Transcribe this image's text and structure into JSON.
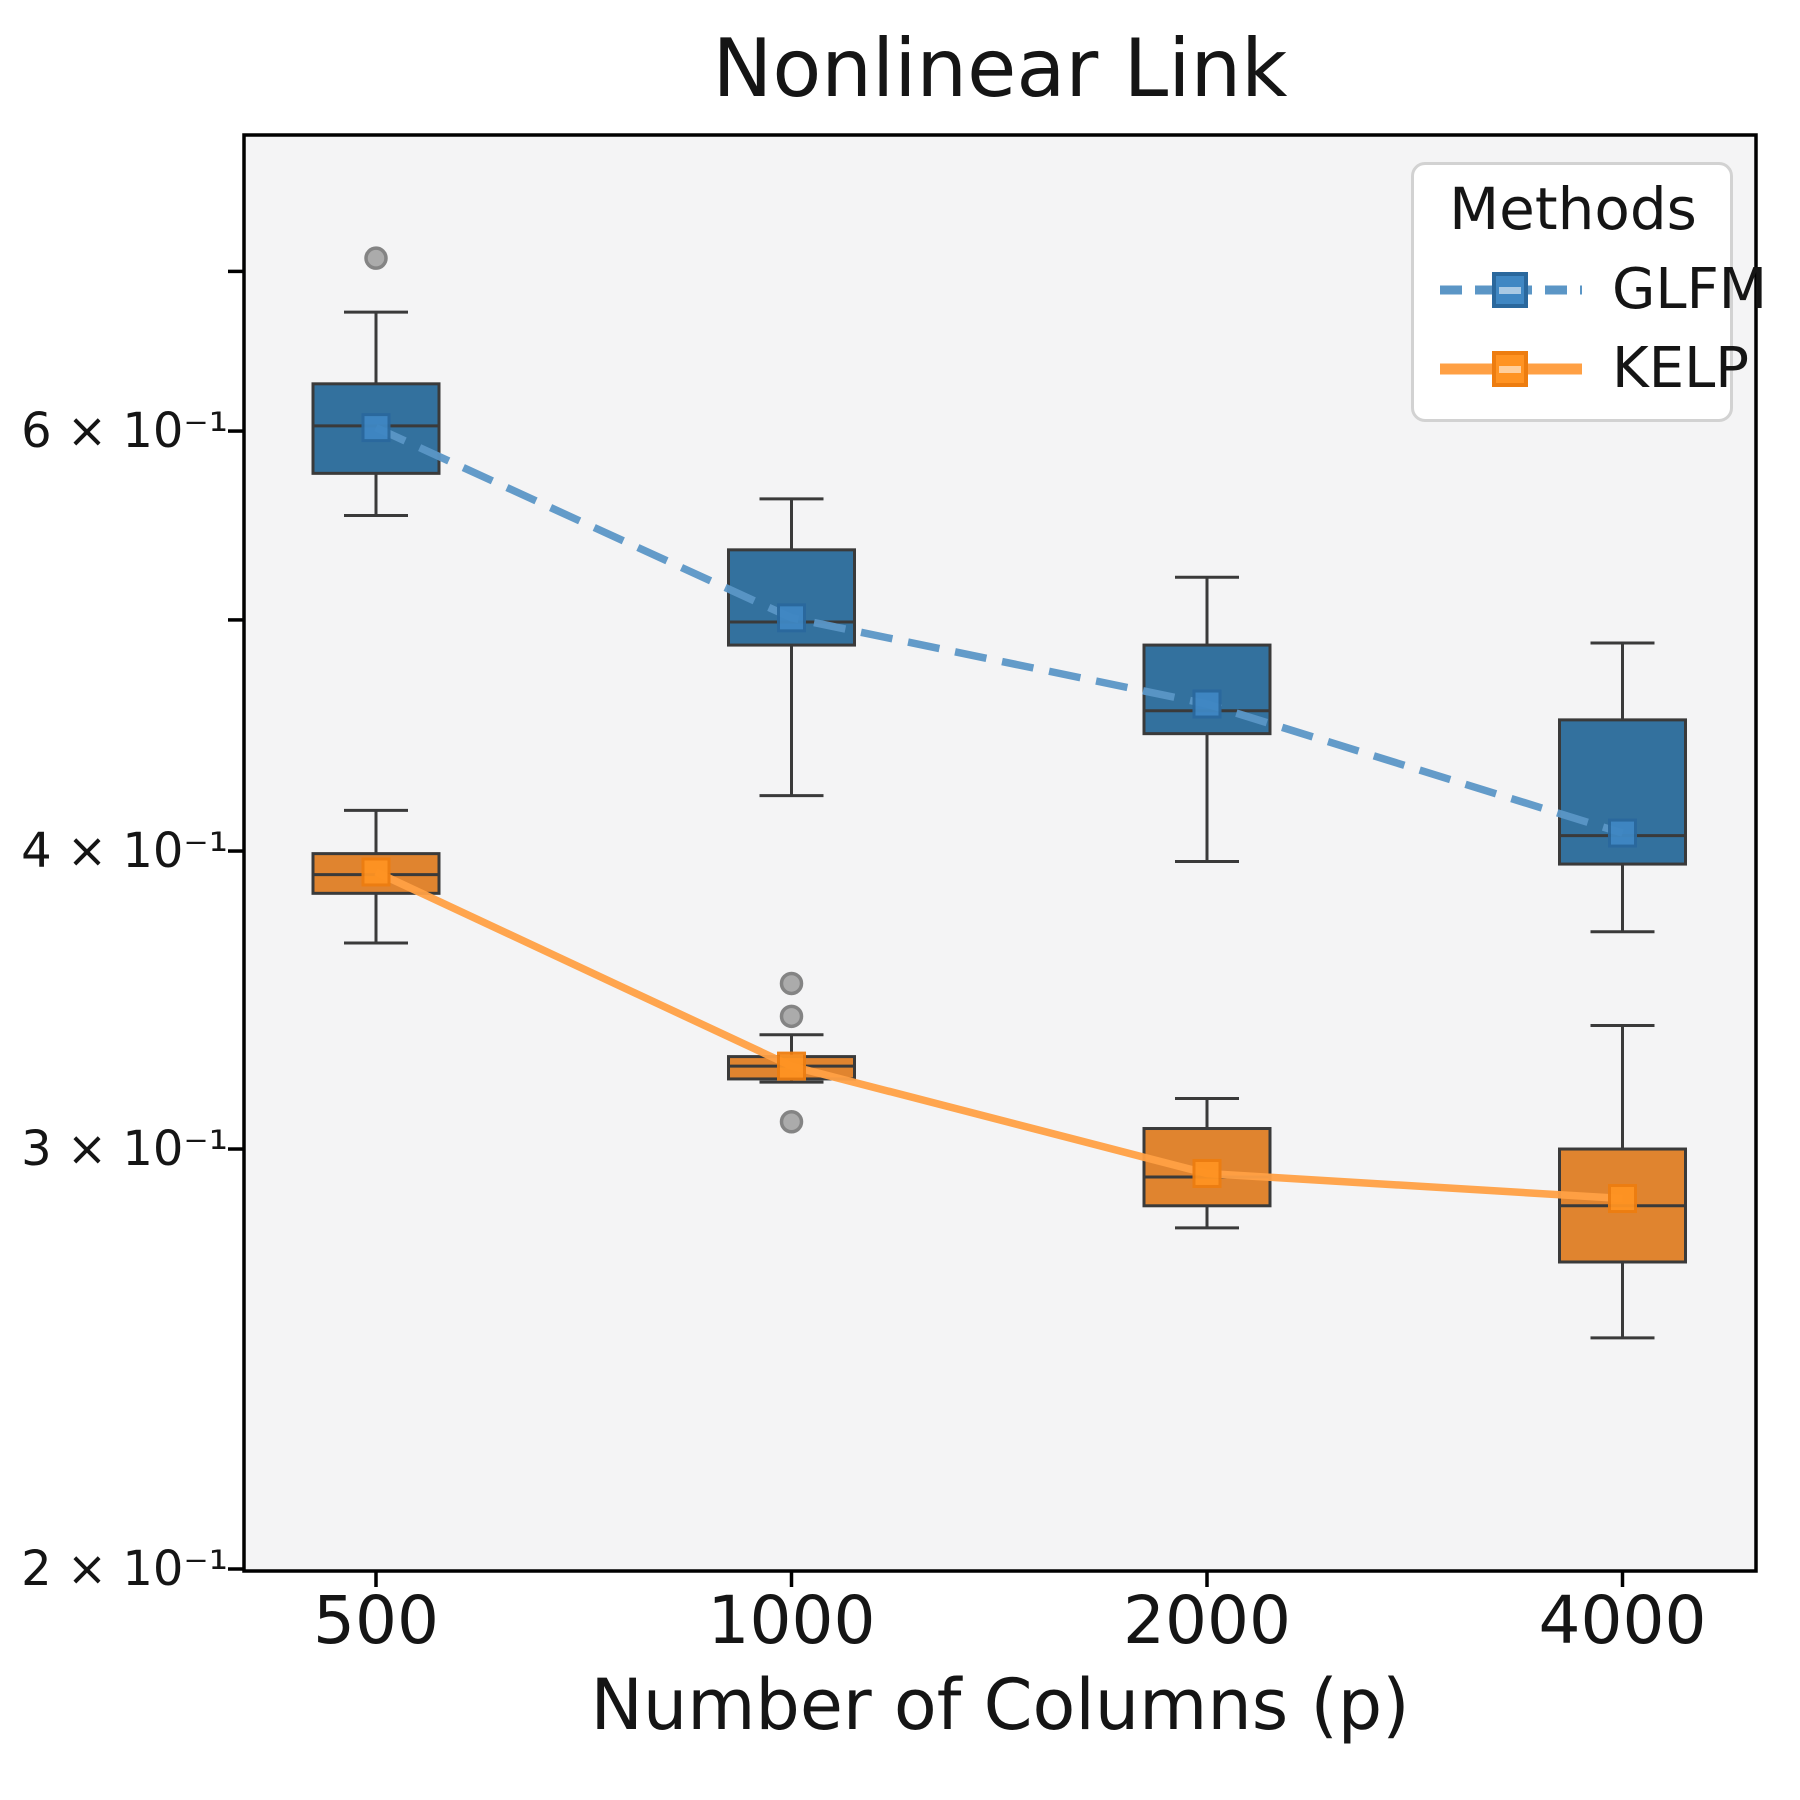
{
  "title": "Nonlinear Link",
  "axes": {
    "xlabel": "Number of Columns (p)",
    "x_tick_labels": [
      "500",
      "1000",
      "2000",
      "4000"
    ],
    "y_ticks": [
      {
        "value": 0.2,
        "label": "2 × 10⁻¹"
      },
      {
        "value": 0.3,
        "label": "3 × 10⁻¹"
      },
      {
        "value": 0.4,
        "label": "4 × 10⁻¹"
      },
      {
        "value": 0.5,
        "label": ""
      },
      {
        "value": 0.6,
        "label": "6 × 10⁻¹"
      },
      {
        "value": 0.7,
        "label": ""
      }
    ]
  },
  "legend": {
    "title": "Methods",
    "entries": [
      {
        "label": "GLFM"
      },
      {
        "label": "KELP"
      }
    ]
  },
  "colors": {
    "axes_background": "#f4f4f5",
    "spine": "#000000",
    "box_edge": "#3a3a3a",
    "outlier_fill": "#ababab",
    "outlier_edge": "#848484",
    "text": "#151515"
  },
  "chart_data": {
    "type": "boxplot",
    "title": "Nonlinear Link",
    "xlabel": "Number of Columns (p)",
    "ylabel": "",
    "yscale": "log",
    "ylim": [
      0.2,
      0.8
    ],
    "grid": false,
    "legend_position": "upper right",
    "categories": [
      500,
      1000,
      2000,
      4000
    ],
    "series": [
      {
        "name": "GLFM",
        "line_style": "dashed",
        "colors": {
          "box_fill": "#33719e",
          "line": "#5b96c6",
          "marker_fill": "#3f87c3",
          "marker_edge": "#2a689d"
        },
        "line_values": [
          0.602,
          0.501,
          0.461,
          0.407
        ],
        "boxes": [
          {
            "whisker_low": 0.553,
            "q1": 0.576,
            "median": 0.603,
            "q3": 0.628,
            "whisker_high": 0.673,
            "outliers": [
              0.709
            ]
          },
          {
            "whisker_low": 0.422,
            "q1": 0.488,
            "median": 0.499,
            "q3": 0.535,
            "whisker_high": 0.562,
            "outliers": []
          },
          {
            "whisker_low": 0.396,
            "q1": 0.448,
            "median": 0.458,
            "q3": 0.488,
            "whisker_high": 0.521,
            "outliers": []
          },
          {
            "whisker_low": 0.37,
            "q1": 0.395,
            "median": 0.406,
            "q3": 0.454,
            "whisker_high": 0.489,
            "outliers": []
          }
        ]
      },
      {
        "name": "KELP",
        "line_style": "solid",
        "colors": {
          "box_fill": "#e0842f",
          "line": "#ffa044",
          "marker_fill": "#ff9322",
          "marker_edge": "#ed7d10"
        },
        "line_values": [
          0.392,
          0.325,
          0.293,
          0.286
        ],
        "boxes": [
          {
            "whisker_low": 0.366,
            "q1": 0.384,
            "median": 0.391,
            "q3": 0.399,
            "whisker_high": 0.416,
            "outliers": []
          },
          {
            "whisker_low": 0.32,
            "q1": 0.321,
            "median": 0.325,
            "q3": 0.328,
            "whisker_high": 0.335,
            "outliers": [
              0.352,
              0.341,
              0.308
            ]
          },
          {
            "whisker_low": 0.278,
            "q1": 0.284,
            "median": 0.292,
            "q3": 0.306,
            "whisker_high": 0.315,
            "outliers": []
          },
          {
            "whisker_low": 0.25,
            "q1": 0.269,
            "median": 0.284,
            "q3": 0.3,
            "whisker_high": 0.338,
            "outliers": []
          }
        ]
      }
    ]
  }
}
